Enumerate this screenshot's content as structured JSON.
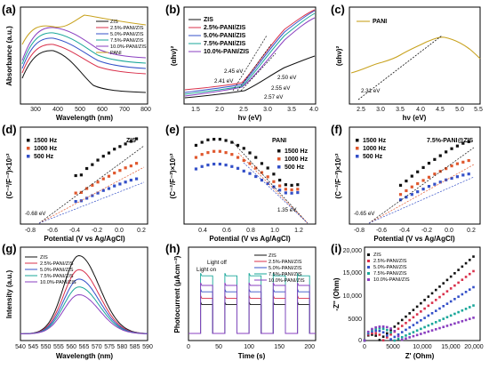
{
  "colors": {
    "ZIS": "#111111",
    "P25": "#d9304b",
    "P50": "#3450c8",
    "P75": "#1aa79a",
    "P100": "#8a3fc0",
    "PANI": "#c8a21e",
    "f1500": "#111111",
    "f1000": "#e0582e",
    "f500": "#3450c8"
  },
  "chart_data": [
    {
      "id": "a",
      "panel_label": "(a)",
      "type": "line",
      "xlabel": "Wavelength (nm)",
      "ylabel": "Absorbance (a.u.)",
      "xlim": [
        220,
        800
      ],
      "xticks": [
        "300",
        "400",
        "500",
        "600",
        "700",
        "800"
      ],
      "legend": [
        "ZIS",
        "2.5%-PANI/ZIS",
        "5.0%-PANI/ZIS",
        "7.5%-PANI/ZIS",
        "10.0%-PANI/ZIS",
        "PANI"
      ],
      "legend_position": "top-right"
    },
    {
      "id": "b",
      "panel_label": "(b)",
      "type": "line",
      "xlabel": "hν (eV)",
      "ylabel": "(αhν)²",
      "xlim": [
        1.25,
        4.0
      ],
      "xticks": [
        "1.5",
        "2.0",
        "2.5",
        "3.0",
        "3.5",
        "4.0"
      ],
      "legend": [
        "ZIS",
        "2.5%-PANI/ZIS",
        "5.0%-PANI/ZIS",
        "7.5%-PANI/ZIS",
        "10.0%-PANI/ZIS"
      ],
      "legend_position": "top-left",
      "annotations": [
        "2.45 eV",
        "2.41 eV",
        "2.50 eV",
        "2.55 eV",
        "2.57 eV"
      ]
    },
    {
      "id": "c",
      "panel_label": "(c)",
      "type": "line",
      "xlabel": "hν (eV)",
      "ylabel": "(αhν)²",
      "xlim": [
        2.2,
        5.5
      ],
      "xticks": [
        "2.5",
        "3.0",
        "3.5",
        "4.0",
        "4.5",
        "5.0",
        "5.5"
      ],
      "legend": [
        "PANI"
      ],
      "legend_position": "top-left",
      "annotations": [
        "2.31 eV"
      ]
    },
    {
      "id": "d",
      "panel_label": "(d)",
      "type": "scatter",
      "xlabel": "Potential (V vs Ag/AgCl)",
      "ylabel": "(C⁻²/F⁻²)×10¹²",
      "xlim": [
        -0.85,
        0.3
      ],
      "xticks": [
        "-0.8",
        "-0.6",
        "-0.4",
        "-0.2",
        "0.0",
        "0.2"
      ],
      "ylim": [
        0,
        15
      ],
      "legend": [
        "1500 Hz",
        "1000 Hz",
        "500 Hz"
      ],
      "legend_position": "top-left",
      "title_text": "ZIS",
      "annotations": [
        "-0.68 eV"
      ],
      "x": [
        -0.35,
        -0.3,
        -0.25,
        -0.2,
        -0.15,
        -0.1,
        -0.05,
        0.0,
        0.05,
        0.1,
        0.15,
        0.2
      ],
      "series": [
        {
          "name": "1500 Hz",
          "values": [
            7.5,
            7.6,
            8.6,
            9.2,
            9.9,
            10.5,
            11.0,
            11.6,
            12.0,
            12.4,
            12.8,
            13.2
          ]
        },
        {
          "name": "1000 Hz",
          "values": [
            4.8,
            4.9,
            5.5,
            6.0,
            6.5,
            7.0,
            7.4,
            7.9,
            8.3,
            8.7,
            9.0,
            9.4
          ]
        },
        {
          "name": "500 Hz",
          "values": [
            3.5,
            3.6,
            4.0,
            4.4,
            4.8,
            5.2,
            5.5,
            5.9,
            6.2,
            6.5,
            6.8,
            7.0
          ]
        }
      ]
    },
    {
      "id": "e",
      "panel_label": "(e)",
      "type": "scatter",
      "xlabel": "Potential (V vs Ag/AgCl)",
      "ylabel": "(C⁻²/F⁻²)×10¹²",
      "xlim": [
        0.25,
        1.35
      ],
      "xticks": [
        "0.4",
        "0.6",
        "0.8",
        "1.0",
        "1.2"
      ],
      "ylim": [
        0,
        32
      ],
      "legend": [
        "1500 Hz",
        "1000 Hz",
        "500 Hz"
      ],
      "legend_position": "top-right",
      "title_text": "PANI",
      "annotations": [
        "1.35 eV"
      ],
      "x": [
        0.35,
        0.4,
        0.45,
        0.5,
        0.55,
        0.6,
        0.65,
        0.7,
        0.75,
        0.8,
        0.85,
        0.9,
        0.95,
        1.0,
        1.05,
        1.1,
        1.15,
        1.2
      ],
      "series": [
        {
          "name": "1500 Hz",
          "values": [
            26,
            27,
            27.8,
            28,
            28,
            27.6,
            27,
            26,
            25,
            23.5,
            22,
            20,
            18.5,
            16.5,
            14.5,
            13,
            12.8,
            13
          ]
        },
        {
          "name": "1000 Hz",
          "values": [
            22,
            23,
            23.6,
            24,
            24,
            23.6,
            23,
            22,
            21,
            20,
            18.5,
            17,
            15.6,
            14,
            12.6,
            11.5,
            11.3,
            11.5
          ]
        },
        {
          "name": "500 Hz",
          "values": [
            18.2,
            19,
            19.5,
            19.8,
            19.8,
            19.5,
            19,
            18.4,
            17.5,
            16.7,
            15.7,
            14.5,
            13.4,
            12.3,
            11.2,
            10.3,
            10.2,
            10.4
          ]
        }
      ]
    },
    {
      "id": "f",
      "panel_label": "(f)",
      "type": "scatter",
      "xlabel": "Potential (V vs Ag/AgCl)",
      "ylabel": "(C⁻²/F⁻²)×10¹²",
      "xlim": [
        -0.85,
        0.3
      ],
      "xticks": [
        "-0.8",
        "-0.6",
        "-0.4",
        "-0.2",
        "0.0",
        "0.2"
      ],
      "ylim": [
        0,
        18
      ],
      "legend": [
        "1500 Hz",
        "1000 Hz",
        "500 Hz"
      ],
      "legend_position": "top-left",
      "title_text": "7.5%-PANI@ZIS",
      "annotations": [
        "-0.65 eV"
      ],
      "x": [
        -0.4,
        -0.35,
        -0.3,
        -0.25,
        -0.2,
        -0.15,
        -0.1,
        -0.05,
        0.0,
        0.05,
        0.1,
        0.15,
        0.2
      ],
      "series": [
        {
          "name": "1500 Hz",
          "values": [
            7.2,
            8.0,
            8.9,
            9.7,
            10.5,
            11.3,
            12.0,
            12.7,
            13.4,
            14.0,
            14.5,
            15.0,
            15.3
          ]
        },
        {
          "name": "1000 Hz",
          "values": [
            5.5,
            6.2,
            6.9,
            7.5,
            8.1,
            8.7,
            9.3,
            9.8,
            10.3,
            10.8,
            11.2,
            11.5,
            11.8
          ]
        },
        {
          "name": "500 Hz",
          "values": [
            4.5,
            5.0,
            5.5,
            6.0,
            6.5,
            7.0,
            7.4,
            7.8,
            8.2,
            8.5,
            8.8,
            9.1,
            9.3
          ]
        }
      ]
    },
    {
      "id": "g",
      "panel_label": "(g)",
      "type": "line",
      "xlabel": "Wavelength (nm)",
      "ylabel": "Intensity (a.u.)",
      "xlim": [
        540,
        590
      ],
      "xticks": [
        "540",
        "545",
        "550",
        "555",
        "560",
        "565",
        "570",
        "575",
        "580",
        "585",
        "590"
      ],
      "legend": [
        "ZIS",
        "2.5%-PANI/ZIS",
        "5.0%-PANI/ZIS",
        "7.5%-PANI/ZIS",
        "10.0%-PANI/ZIS"
      ],
      "legend_position": "top-left",
      "peak_nm": 563,
      "series": [
        {
          "name": "ZIS",
          "peak": 1.0
        },
        {
          "name": "2.5%-PANI/ZIS",
          "peak": 0.82
        },
        {
          "name": "5.0%-PANI/ZIS",
          "peak": 0.7
        },
        {
          "name": "7.5%-PANI/ZIS",
          "peak": 0.6
        },
        {
          "name": "10.0%-PANI/ZIS",
          "peak": 0.5
        }
      ]
    },
    {
      "id": "h",
      "panel_label": "(h)",
      "type": "line",
      "xlabel": "Time (s)",
      "ylabel": "Photocurrent (μAcm⁻²)",
      "xlim": [
        0,
        210
      ],
      "xticks": [
        "0",
        "50",
        "100",
        "150",
        "200"
      ],
      "legend": [
        "ZIS",
        "2.5%-PANI/ZIS",
        "5.0%-PANI/ZIS",
        "7.5%-PANI/ZIS",
        "10.0%-PANI/ZIS"
      ],
      "legend_position": "top-right",
      "annotations": [
        "Light on",
        "Light off"
      ],
      "on_periods": [
        [
          20,
          40
        ],
        [
          60,
          80
        ],
        [
          100,
          120
        ],
        [
          140,
          160
        ],
        [
          180,
          200
        ]
      ],
      "series": [
        {
          "name": "ZIS",
          "on": 0.45
        },
        {
          "name": "2.5%-PANI/ZIS",
          "on": 0.55
        },
        {
          "name": "5.0%-PANI/ZIS",
          "on": 0.65
        },
        {
          "name": "7.5%-PANI/ZIS",
          "on": 0.9
        },
        {
          "name": "10.0%-PANI/ZIS",
          "on": 0.75
        }
      ]
    },
    {
      "id": "i",
      "panel_label": "(i)",
      "type": "scatter",
      "xlabel": "Z' (Ohm)",
      "ylabel": "-Z'' (Ohm)",
      "xlim": [
        0,
        20000
      ],
      "xticks": [
        "0",
        "5000",
        "10,000",
        "15,000",
        "20,000"
      ],
      "ylim": [
        0,
        20000
      ],
      "yticks": [
        "0",
        "5000",
        "10,000",
        "15,000",
        "20,000"
      ],
      "legend": [
        "ZIS",
        "2.5%-PANI/ZIS",
        "5.0%-PANI/ZIS",
        "7.5%-PANI/ZIS",
        "10.0%-PANI/ZIS"
      ],
      "legend_position": "top-left",
      "series": [
        {
          "name": "ZIS",
          "slope": 1.1,
          "arc": 2500
        },
        {
          "name": "2.5%-PANI/ZIS",
          "slope": 0.95,
          "arc": 3200
        },
        {
          "name": "5.0%-PANI/ZIS",
          "slope": 0.78,
          "arc": 4200
        },
        {
          "name": "7.5%-PANI/ZIS",
          "slope": 0.55,
          "arc": 5200
        },
        {
          "name": "10.0%-PANI/ZIS",
          "slope": 0.38,
          "arc": 6000
        }
      ]
    }
  ]
}
